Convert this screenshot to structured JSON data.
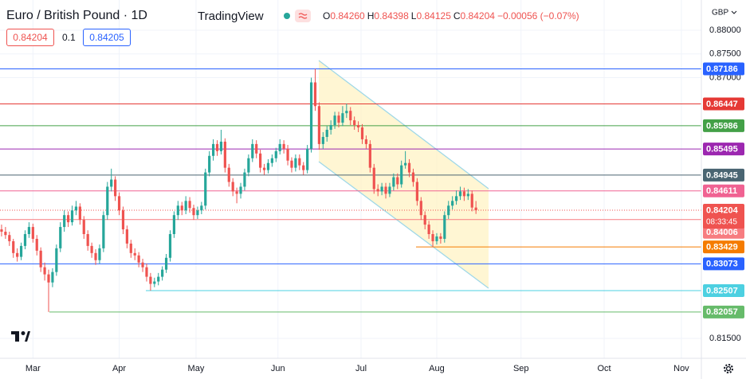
{
  "header": {
    "symbol": "Euro / British Pound · 1D",
    "brand": "TradingView",
    "ohlc": [
      {
        "key": "O",
        "value": "0.84260"
      },
      {
        "key": "H",
        "value": "0.84398"
      },
      {
        "key": "L",
        "value": "0.84125"
      },
      {
        "key": "C",
        "value": "0.84204"
      }
    ],
    "change": "−0.00056 (−0.07%)"
  },
  "trade": {
    "sell": "0.84204",
    "spread": "0.1",
    "buy": "0.84205"
  },
  "chart_data": {
    "type": "candlestick",
    "currency": "GBP",
    "open": [
      0.838,
      0.8375,
      0.8368,
      0.8355,
      0.833,
      0.8322,
      0.8345,
      0.837,
      0.8385,
      0.836,
      0.8335,
      0.83,
      0.8285,
      0.8268,
      0.829,
      0.834,
      0.8385,
      0.841,
      0.8395,
      0.842,
      0.8428,
      0.84,
      0.837,
      0.8345,
      0.833,
      0.8315,
      0.834,
      0.841,
      0.847,
      0.8485,
      0.845,
      0.842,
      0.838,
      0.835,
      0.833,
      0.8325,
      0.831,
      0.83,
      0.828,
      0.8265,
      0.827,
      0.828,
      0.8295,
      0.832,
      0.837,
      0.841,
      0.843,
      0.842,
      0.844,
      0.8425,
      0.841,
      0.842,
      0.843,
      0.85,
      0.8535,
      0.856,
      0.8545,
      0.8565,
      0.851,
      0.848,
      0.846,
      0.8455,
      0.847,
      0.85,
      0.853,
      0.856,
      0.854,
      0.851,
      0.8505,
      0.852,
      0.853,
      0.8545,
      0.856,
      0.855,
      0.8525,
      0.851,
      0.853,
      0.8515,
      0.8505,
      0.855,
      0.869,
      0.864,
      0.856,
      0.8575,
      0.859,
      0.86,
      0.862,
      0.8605,
      0.8625,
      0.863,
      0.861,
      0.86,
      0.8595,
      0.857,
      0.856,
      0.851,
      0.8465,
      0.846,
      0.847,
      0.8455,
      0.847,
      0.849,
      0.8475,
      0.8515,
      0.852,
      0.85,
      0.848,
      0.844,
      0.841,
      0.839,
      0.837,
      0.8355,
      0.8365,
      0.836,
      0.841,
      0.843,
      0.844,
      0.845,
      0.846,
      0.845,
      0.8455,
      0.8426
    ],
    "high": [
      0.839,
      0.8385,
      0.8375,
      0.836,
      0.834,
      0.8352,
      0.8378,
      0.8395,
      0.8392,
      0.8368,
      0.8342,
      0.831,
      0.8295,
      0.8298,
      0.8348,
      0.8395,
      0.842,
      0.8418,
      0.843,
      0.844,
      0.8435,
      0.8408,
      0.8378,
      0.8352,
      0.8338,
      0.8348,
      0.8418,
      0.848,
      0.8508,
      0.8492,
      0.8458,
      0.8428,
      0.8388,
      0.8358,
      0.834,
      0.8332,
      0.8318,
      0.8308,
      0.8288,
      0.8278,
      0.8288,
      0.8302,
      0.8328,
      0.8378,
      0.8418,
      0.844,
      0.8438,
      0.845,
      0.8448,
      0.8432,
      0.8428,
      0.8438,
      0.8508,
      0.8545,
      0.857,
      0.8568,
      0.859,
      0.8572,
      0.8518,
      0.8488,
      0.8468,
      0.8478,
      0.8508,
      0.8538,
      0.857,
      0.8568,
      0.8548,
      0.8518,
      0.8528,
      0.8538,
      0.8552,
      0.857,
      0.8568,
      0.8558,
      0.8532,
      0.8538,
      0.8538,
      0.8522,
      0.8558,
      0.87,
      0.87186,
      0.8648,
      0.8585,
      0.8598,
      0.861,
      0.8628,
      0.8628,
      0.864,
      0.8645,
      0.8638,
      0.8618,
      0.8608,
      0.8602,
      0.8578,
      0.8568,
      0.8518,
      0.8475,
      0.8478,
      0.8478,
      0.8478,
      0.8498,
      0.8498,
      0.8525,
      0.8545,
      0.8528,
      0.8508,
      0.8488,
      0.8448,
      0.8418,
      0.8398,
      0.8378,
      0.8372,
      0.8372,
      0.8418,
      0.844,
      0.845,
      0.8462,
      0.847,
      0.8468,
      0.8465,
      0.8462,
      0.84398
    ],
    "low": [
      0.8365,
      0.836,
      0.8345,
      0.832,
      0.8312,
      0.8315,
      0.8338,
      0.8362,
      0.8352,
      0.8325,
      0.829,
      0.8272,
      0.82057,
      0.8258,
      0.8282,
      0.8332,
      0.8375,
      0.8385,
      0.8388,
      0.841,
      0.839,
      0.836,
      0.8335,
      0.832,
      0.8305,
      0.8308,
      0.8332,
      0.84,
      0.846,
      0.844,
      0.841,
      0.837,
      0.834,
      0.832,
      0.8315,
      0.83,
      0.829,
      0.827,
      0.82507,
      0.8258,
      0.8262,
      0.8272,
      0.8288,
      0.8312,
      0.8362,
      0.84,
      0.841,
      0.8412,
      0.8415,
      0.84,
      0.8402,
      0.8412,
      0.8422,
      0.8492,
      0.8525,
      0.8535,
      0.8538,
      0.85,
      0.847,
      0.845,
      0.8435,
      0.8445,
      0.8462,
      0.8492,
      0.8522,
      0.853,
      0.85,
      0.8495,
      0.8498,
      0.8512,
      0.8522,
      0.8538,
      0.854,
      0.8515,
      0.85,
      0.8502,
      0.8505,
      0.8495,
      0.8498,
      0.8542,
      0.863,
      0.8548,
      0.855,
      0.8565,
      0.858,
      0.8592,
      0.8595,
      0.8598,
      0.8615,
      0.86,
      0.859,
      0.8585,
      0.856,
      0.855,
      0.85,
      0.8455,
      0.845,
      0.8452,
      0.8445,
      0.8448,
      0.8462,
      0.8465,
      0.8468,
      0.8508,
      0.849,
      0.847,
      0.843,
      0.84,
      0.838,
      0.836,
      0.83429,
      0.8348,
      0.835,
      0.8352,
      0.8402,
      0.8422,
      0.8432,
      0.8442,
      0.844,
      0.8442,
      0.8418,
      0.84125
    ],
    "close": [
      0.8375,
      0.8368,
      0.8355,
      0.833,
      0.8322,
      0.8345,
      0.837,
      0.8385,
      0.836,
      0.8335,
      0.83,
      0.8285,
      0.8268,
      0.829,
      0.834,
      0.8385,
      0.841,
      0.8395,
      0.842,
      0.8428,
      0.84,
      0.837,
      0.8345,
      0.833,
      0.8315,
      0.834,
      0.841,
      0.847,
      0.8485,
      0.845,
      0.842,
      0.838,
      0.835,
      0.833,
      0.8325,
      0.831,
      0.83,
      0.828,
      0.8265,
      0.827,
      0.828,
      0.8295,
      0.832,
      0.837,
      0.841,
      0.843,
      0.842,
      0.844,
      0.8425,
      0.841,
      0.842,
      0.843,
      0.85,
      0.8535,
      0.856,
      0.8545,
      0.8565,
      0.851,
      0.848,
      0.846,
      0.8455,
      0.847,
      0.85,
      0.853,
      0.856,
      0.854,
      0.851,
      0.8505,
      0.852,
      0.853,
      0.8545,
      0.856,
      0.855,
      0.8525,
      0.851,
      0.853,
      0.8515,
      0.8505,
      0.855,
      0.869,
      0.864,
      0.856,
      0.8575,
      0.859,
      0.86,
      0.862,
      0.8605,
      0.8625,
      0.863,
      0.861,
      0.86,
      0.8595,
      0.857,
      0.856,
      0.851,
      0.8465,
      0.846,
      0.847,
      0.8455,
      0.847,
      0.849,
      0.8475,
      0.8515,
      0.852,
      0.85,
      0.848,
      0.844,
      0.841,
      0.839,
      0.837,
      0.8355,
      0.8365,
      0.836,
      0.841,
      0.843,
      0.844,
      0.845,
      0.846,
      0.845,
      0.8455,
      0.8426,
      0.84204
    ],
    "up_color": "#26a69a",
    "down_color": "#ef5350",
    "xlim": [
      -0.4,
      178.5
    ],
    "xticks": [
      {
        "value": 8,
        "label": "Mar"
      },
      {
        "value": 30,
        "label": "Apr"
      },
      {
        "value": 49.6,
        "label": "May"
      },
      {
        "value": 70.5,
        "label": "Jun"
      },
      {
        "value": 91.7,
        "label": "Jul"
      },
      {
        "value": 111,
        "label": "Aug"
      },
      {
        "value": 132.5,
        "label": "Sep"
      },
      {
        "value": 153.7,
        "label": "Oct"
      },
      {
        "value": 173.4,
        "label": "Nov"
      }
    ],
    "ylim": [
      0.8108,
      0.88638
    ],
    "yticks": [
      {
        "value": 0.88,
        "label": "0.88000"
      },
      {
        "value": 0.875,
        "label": "0.87500"
      },
      {
        "value": 0.87,
        "label": "0.87000"
      },
      {
        "value": 0.815,
        "label": "0.81500"
      }
    ],
    "grid": true,
    "levels": [
      {
        "value": 0.87186,
        "color": "#2962ff"
      },
      {
        "value": 0.86447,
        "color": "#e53935"
      },
      {
        "value": 0.85986,
        "color": "#43a047"
      },
      {
        "value": 0.85495,
        "color": "#9c27b0"
      },
      {
        "value": 0.84945,
        "color": "#4a6572"
      },
      {
        "value": 0.84611,
        "color": "#f06292"
      },
      {
        "value": 0.84006,
        "color": "#f77c80"
      },
      {
        "value": 0.83429,
        "color": "#f57c00"
      },
      {
        "value": 0.83073,
        "color": "#2962ff"
      },
      {
        "value": 0.82507,
        "color": "#4dd0e1"
      },
      {
        "value": 0.82057,
        "color": "#66bb6a"
      }
    ],
    "countdown": "08:33:45"
  }
}
